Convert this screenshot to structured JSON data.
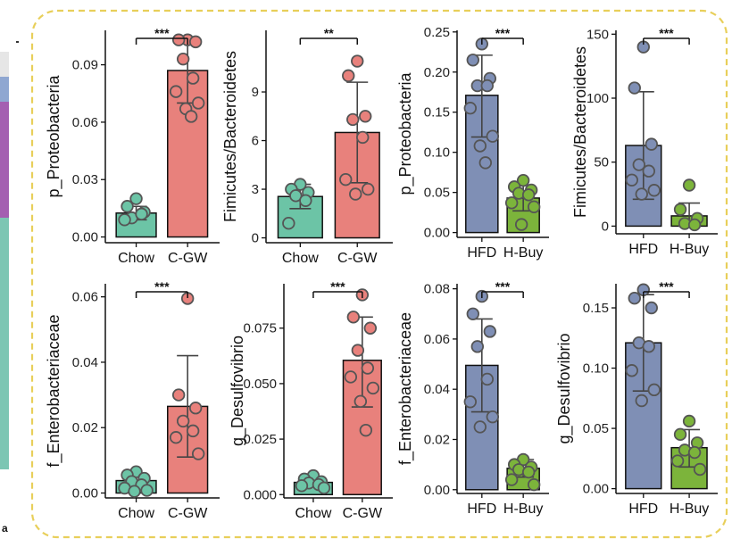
{
  "figure": {
    "panel_letter": "a"
  },
  "colors": {
    "chow": "#6cc4a6",
    "cgw": "#e8817c",
    "hfd": "#7f8fb5",
    "hbuy": "#7cb43b",
    "frame": "#e8cf5a",
    "strip_green": "#7cc6b3",
    "strip_purple": "#a45fb1",
    "strip_blue": "#8fa7d1",
    "strip_gray": "#e6e6e6"
  },
  "chart_data": [
    {
      "type": "bar",
      "group": "left",
      "title": "",
      "ylabel": "p_Proteobacteria",
      "categories": [
        "Chow",
        "C-GW"
      ],
      "ylim": [
        -0.003,
        0.108
      ],
      "yticks": [
        0.0,
        0.03,
        0.06,
        0.09
      ],
      "tick_labels": [
        "0.00",
        "0.03",
        "0.06",
        "0.09"
      ],
      "means": [
        0.0125,
        0.087
      ],
      "err_low": [
        0.009,
        0.07
      ],
      "err_high": [
        0.016,
        0.104
      ],
      "points": [
        [
          0.02,
          0.016,
          0.013,
          0.01,
          0.012,
          0.009
        ],
        [
          0.103,
          0.103,
          0.102,
          0.093,
          0.083,
          0.076,
          0.07,
          0.067,
          0.063
        ]
      ],
      "significance": "***"
    },
    {
      "type": "bar",
      "group": "left",
      "title": "",
      "ylabel": "Fimicutes/Bacteroidetes",
      "categories": [
        "Chow",
        "C-GW"
      ],
      "ylim": [
        -0.3,
        12.8
      ],
      "yticks": [
        0,
        3,
        6,
        9
      ],
      "tick_labels": [
        "0",
        "3",
        "6",
        "9"
      ],
      "means": [
        2.55,
        6.5
      ],
      "err_low": [
        1.8,
        3.4
      ],
      "err_high": [
        3.3,
        9.6
      ],
      "points": [
        [
          3.3,
          3.0,
          2.8,
          2.6,
          2.3,
          0.9
        ],
        [
          10.9,
          10.0,
          7.5,
          7.3,
          6.2,
          3.6,
          3.0,
          2.7
        ]
      ],
      "significance": "**"
    },
    {
      "type": "bar",
      "group": "right",
      "title": "",
      "ylabel": "p_Proteobacteria",
      "categories": [
        "HFD",
        "H-Buy"
      ],
      "ylim": [
        -0.006,
        0.252
      ],
      "yticks": [
        0.0,
        0.05,
        0.1,
        0.15,
        0.2,
        0.25
      ],
      "tick_labels": [
        "0.00",
        "0.05",
        "0.10",
        "0.15",
        "0.20",
        "0.25"
      ],
      "means": [
        0.171,
        0.043
      ],
      "err_low": [
        0.119,
        0.027
      ],
      "err_high": [
        0.221,
        0.059
      ],
      "points": [
        [
          0.235,
          0.215,
          0.192,
          0.183,
          0.183,
          0.155,
          0.12,
          0.108,
          0.087
        ],
        [
          0.065,
          0.057,
          0.053,
          0.049,
          0.047,
          0.037,
          0.032,
          0.01
        ]
      ],
      "significance": "***"
    },
    {
      "type": "bar",
      "group": "right",
      "title": "",
      "ylabel": "Fimicutes/Bacteroidetes",
      "categories": [
        "HFD",
        "H-Buy"
      ],
      "ylim": [
        -6,
        153
      ],
      "yticks": [
        0,
        50,
        100,
        150
      ],
      "tick_labels": [
        "0",
        "50",
        "100",
        "150"
      ],
      "means": [
        63,
        8
      ],
      "err_low": [
        21,
        0
      ],
      "err_high": [
        105,
        18
      ],
      "points": [
        [
          140,
          108,
          64,
          48,
          43,
          36,
          28,
          25
        ],
        [
          32,
          13,
          6,
          2,
          1
        ]
      ],
      "significance": "***"
    },
    {
      "type": "bar",
      "group": "left",
      "title": "",
      "ylabel": "f_Enterobacteriaceae",
      "categories": [
        "Chow",
        "C-GW"
      ],
      "ylim": [
        -0.0015,
        0.064
      ],
      "yticks": [
        0.0,
        0.02,
        0.04,
        0.06
      ],
      "tick_labels": [
        "0.00",
        "0.02",
        "0.04",
        "0.06"
      ],
      "means": [
        0.0038,
        0.0265
      ],
      "err_low": [
        0.0015,
        0.011
      ],
      "err_high": [
        0.0061,
        0.042
      ],
      "points": [
        [
          0.0065,
          0.0055,
          0.0045,
          0.0035,
          0.0025,
          0.0015,
          0.0008,
          0.0005
        ],
        [
          0.0595,
          0.03,
          0.026,
          0.022,
          0.019,
          0.017,
          0.012
        ]
      ],
      "significance": "***"
    },
    {
      "type": "bar",
      "group": "left",
      "title": "",
      "ylabel": "g_Desulfovibrio",
      "categories": [
        "Chow",
        "C-GW"
      ],
      "ylim": [
        -0.0015,
        0.095
      ],
      "yticks": [
        0.0,
        0.025,
        0.05,
        0.075
      ],
      "tick_labels": [
        "0.000",
        "0.025",
        "0.050",
        "0.075"
      ],
      "means": [
        0.0055,
        0.0605
      ],
      "err_low": [
        0.0035,
        0.0395
      ],
      "err_high": [
        0.0075,
        0.08
      ],
      "points": [
        [
          0.0085,
          0.007,
          0.0058,
          0.0052,
          0.0045,
          0.004,
          0.003
        ],
        [
          0.09,
          0.08,
          0.075,
          0.065,
          0.057,
          0.053,
          0.048,
          0.042,
          0.029
        ]
      ],
      "significance": "***"
    },
    {
      "type": "bar",
      "group": "right",
      "title": "",
      "ylabel": "f_Enterobacteriaceae",
      "categories": [
        "HFD",
        "H-Buy"
      ],
      "ylim": [
        -0.0015,
        0.082
      ],
      "yticks": [
        0.0,
        0.02,
        0.04,
        0.06,
        0.08
      ],
      "tick_labels": [
        "0.00",
        "0.02",
        "0.04",
        "0.06",
        "0.08"
      ],
      "means": [
        0.0495,
        0.0085
      ],
      "err_low": [
        0.031,
        0.005
      ],
      "err_high": [
        0.068,
        0.012
      ],
      "points": [
        [
          0.077,
          0.07,
          0.063,
          0.057,
          0.044,
          0.035,
          0.029,
          0.025
        ],
        [
          0.012,
          0.01,
          0.009,
          0.008,
          0.007,
          0.004,
          0.002
        ]
      ],
      "significance": "***"
    },
    {
      "type": "bar",
      "group": "right",
      "title": "",
      "ylabel": "g_Desulfovibrio",
      "categories": [
        "HFD",
        "H-Buy"
      ],
      "ylim": [
        -0.004,
        0.17
      ],
      "yticks": [
        0.0,
        0.05,
        0.1,
        0.15
      ],
      "tick_labels": [
        "0.00",
        "0.05",
        "0.10",
        "0.15"
      ],
      "means": [
        0.121,
        0.034
      ],
      "err_low": [
        0.081,
        0.018
      ],
      "err_high": [
        0.161,
        0.049
      ],
      "points": [
        [
          0.165,
          0.158,
          0.15,
          0.121,
          0.118,
          0.098,
          0.082,
          0.073
        ],
        [
          0.056,
          0.045,
          0.038,
          0.032,
          0.03,
          0.023,
          0.016
        ]
      ],
      "significance": "***"
    }
  ]
}
